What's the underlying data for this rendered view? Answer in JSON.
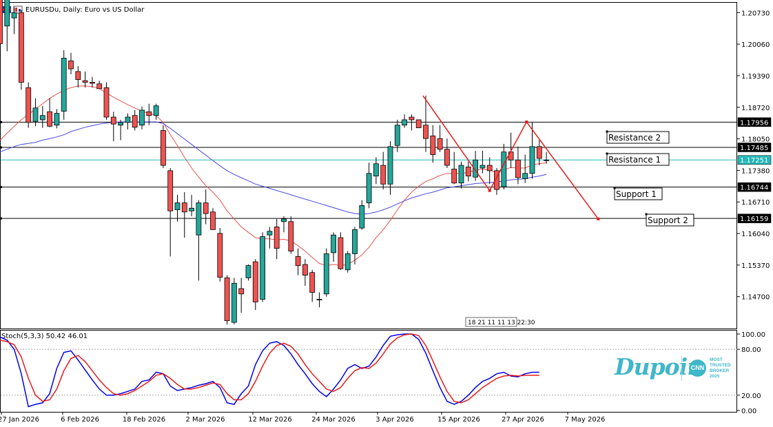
{
  "header": {
    "title": "EURUSDu, Daily:  Euro vs US Dollar"
  },
  "subchart": {
    "title": "Stoch(5,3,3) 50.42 46.01"
  },
  "brand": {
    "name": "Dupoin",
    "badge": "CNN",
    "tagline": "MOST TRUSTED BROKER 2025"
  },
  "colors": {
    "bull": "#26a69a",
    "bear": "#ef5350",
    "ma_fast": "#e8514a",
    "ma_slow": "#4747e0",
    "bid_line": "#26b7b7",
    "trend": "#e61919",
    "stoch_main": "#0000e6",
    "stoch_signal": "#e61919"
  },
  "chart_data": [
    {
      "type": "candlestick",
      "title": "EURUSDu, Daily:  Euro vs US Dollar",
      "ylim": [
        1.1405,
        1.2085
      ],
      "y_ticks": [
        "1.20730",
        "1.20060",
        "1.19390",
        "1.18720",
        "1.18050",
        "1.17380",
        "1.16710",
        "1.16040",
        "1.15370",
        "1.14700"
      ],
      "x_labels": [
        "27 Jan 2026",
        "6 Feb 2026",
        "18 Feb 2026",
        "2 Mar 2026",
        "12 Mar 2026",
        "24 Mar 2026",
        "3 Apr 2026",
        "15 Apr 2026",
        "27 Apr 2026",
        "7 May 2026"
      ],
      "time_overlay_label": "18 21 11 11 13 22:30",
      "candles": [
        [
          1.2048,
          1.2054,
          1.1917,
          1.1942
        ],
        [
          1.1975,
          1.2045,
          1.1928,
          1.203
        ],
        [
          1.199,
          1.201,
          1.196,
          1.2
        ],
        [
          1.2,
          1.2005,
          1.1856,
          1.187
        ],
        [
          1.186,
          1.187,
          1.1785,
          1.1795
        ],
        [
          1.1797,
          1.184,
          1.1788,
          1.1822
        ],
        [
          1.18,
          1.1826,
          1.1785,
          1.1808
        ],
        [
          1.1815,
          1.184,
          1.1786,
          1.1788
        ],
        [
          1.179,
          1.182,
          1.1784,
          1.1812
        ],
        [
          1.1816,
          1.193,
          1.18,
          1.1915
        ],
        [
          1.191,
          1.1925,
          1.1885,
          1.1895
        ],
        [
          1.189,
          1.19,
          1.186,
          1.1875
        ],
        [
          1.1873,
          1.189,
          1.186,
          1.187
        ],
        [
          1.187,
          1.188,
          1.186,
          1.1868
        ],
        [
          1.1867,
          1.1873,
          1.1858,
          1.1858
        ],
        [
          1.186,
          1.187,
          1.18,
          1.1805
        ],
        [
          1.1805,
          1.1815,
          1.176,
          1.1792
        ],
        [
          1.179,
          1.18,
          1.1762,
          1.1795
        ],
        [
          1.1795,
          1.1812,
          1.1782,
          1.1805
        ],
        [
          1.1808,
          1.1818,
          1.178,
          1.1786
        ],
        [
          1.179,
          1.1825,
          1.1782,
          1.1818
        ],
        [
          1.1815,
          1.183,
          1.179,
          1.1808
        ],
        [
          1.1808,
          1.183,
          1.18,
          1.1826
        ],
        [
          1.178,
          1.179,
          1.171,
          1.1715
        ],
        [
          1.1705,
          1.171,
          1.1545,
          1.163
        ],
        [
          1.1632,
          1.166,
          1.161,
          1.1645
        ],
        [
          1.1645,
          1.1665,
          1.158,
          1.1628
        ],
        [
          1.163,
          1.166,
          1.162,
          1.1635
        ],
        [
          1.1585,
          1.165,
          1.15,
          1.1645
        ],
        [
          1.1645,
          1.167,
          1.1605,
          1.1625
        ],
        [
          1.1628,
          1.1635,
          1.1595,
          1.1595
        ],
        [
          1.1588,
          1.1598,
          1.1498,
          1.1506
        ],
        [
          1.1505,
          1.151,
          1.1418,
          1.1425
        ],
        [
          1.1422,
          1.1505,
          1.1418,
          1.1495
        ],
        [
          1.1485,
          1.1505,
          1.144,
          1.1475
        ],
        [
          1.1505,
          1.153,
          1.15,
          1.1528
        ],
        [
          1.1535,
          1.154,
          1.1445,
          1.146
        ],
        [
          1.1465,
          1.159,
          1.146,
          1.1582
        ],
        [
          1.1585,
          1.16,
          1.156,
          1.1592
        ],
        [
          1.16,
          1.1615,
          1.154,
          1.156
        ],
        [
          1.161,
          1.162,
          1.159,
          1.1615
        ],
        [
          1.161,
          1.162,
          1.155,
          1.1555
        ],
        [
          1.1545,
          1.156,
          1.151,
          1.1528
        ],
        [
          1.153,
          1.154,
          1.149,
          1.151
        ],
        [
          1.1515,
          1.152,
          1.146,
          1.1478
        ],
        [
          1.1465,
          1.1478,
          1.145,
          1.1465
        ],
        [
          1.1475,
          1.156,
          1.147,
          1.155
        ],
        [
          1.1552,
          1.159,
          1.1535,
          1.1585
        ],
        [
          1.158,
          1.159,
          1.152,
          1.1522
        ],
        [
          1.152,
          1.1555,
          1.1515,
          1.155
        ],
        [
          1.155,
          1.16,
          1.153,
          1.1595
        ],
        [
          1.1598,
          1.165,
          1.1595,
          1.164
        ],
        [
          1.1645,
          1.172,
          1.1635,
          1.17
        ],
        [
          1.1695,
          1.173,
          1.168,
          1.1718
        ],
        [
          1.1715,
          1.174,
          1.167,
          1.168
        ],
        [
          1.168,
          1.176,
          1.166,
          1.175
        ],
        [
          1.1752,
          1.18,
          1.174,
          1.179
        ],
        [
          1.179,
          1.181,
          1.1785,
          1.18
        ],
        [
          1.1805,
          1.181,
          1.178,
          1.18
        ],
        [
          1.18,
          1.18,
          1.1785,
          1.1785
        ],
        [
          1.179,
          1.1845,
          1.174,
          1.1765
        ],
        [
          1.177,
          1.179,
          1.172,
          1.1735
        ],
        [
          1.1765,
          1.179,
          1.174,
          1.1745
        ],
        [
          1.1745,
          1.1765,
          1.171,
          1.1715
        ],
        [
          1.1708,
          1.174,
          1.168,
          1.1682
        ],
        [
          1.1682,
          1.1722,
          1.1672,
          1.1715
        ],
        [
          1.1712,
          1.1722,
          1.1685,
          1.1695
        ],
        [
          1.1693,
          1.1742,
          1.1686,
          1.1725
        ],
        [
          1.171,
          1.1742,
          1.17,
          1.1715
        ],
        [
          1.1715,
          1.173,
          1.168,
          1.1705
        ],
        [
          1.1705,
          1.171,
          1.166,
          1.167
        ],
        [
          1.1675,
          1.1755,
          1.167,
          1.174
        ],
        [
          1.174,
          1.1776,
          1.171,
          1.1725
        ],
        [
          1.1725,
          1.175,
          1.168,
          1.1692
        ],
        [
          1.169,
          1.1735,
          1.1682,
          1.17
        ],
        [
          1.17,
          1.1795,
          1.169,
          1.175
        ],
        [
          1.175,
          1.1762,
          1.1715,
          1.1728
        ],
        [
          1.1725,
          1.174,
          1.1718,
          1.1725
        ]
      ],
      "series": [
        {
          "values": [
            1.1762,
            1.1775,
            1.1788,
            1.18,
            1.181,
            1.182,
            1.183,
            1.184,
            1.1848,
            1.1855,
            1.186,
            1.1863,
            1.1863,
            1.1862,
            1.1858,
            1.185,
            1.1842,
            1.1835,
            1.1828,
            1.1822,
            1.1816,
            1.1812,
            1.1808,
            1.1795,
            1.1772,
            1.1752,
            1.173,
            1.171,
            1.1693,
            1.1677,
            1.1665,
            1.165,
            1.163,
            1.1615,
            1.16,
            1.159,
            1.158,
            1.1578,
            1.1578,
            1.1576,
            1.1577,
            1.1574,
            1.1565,
            1.1555,
            1.1543,
            1.1532,
            1.1528,
            1.153,
            1.1528,
            1.153,
            1.1538,
            1.1548,
            1.1562,
            1.158,
            1.1595,
            1.1612,
            1.1632,
            1.165,
            1.1665,
            1.1676,
            1.1685,
            1.169,
            1.1696,
            1.17,
            1.17,
            1.17,
            1.1702,
            1.1706,
            1.1708,
            1.1706,
            1.1702,
            1.1707,
            1.1711,
            1.171,
            1.171,
            1.1716,
            1.1718,
            1.172
          ]
        },
        {
          "values": [
            1.174,
            1.1745,
            1.175,
            1.1754,
            1.1756,
            1.1758,
            1.1762,
            1.1765,
            1.1768,
            1.1772,
            1.1778,
            1.1782,
            1.1786,
            1.1789,
            1.1792,
            1.1794,
            1.1795,
            1.1796,
            1.1796,
            1.1796,
            1.1796,
            1.1796,
            1.1796,
            1.1793,
            1.1784,
            1.1774,
            1.1764,
            1.1754,
            1.1744,
            1.1734,
            1.1724,
            1.1714,
            1.1705,
            1.1698,
            1.1692,
            1.1686,
            1.168,
            1.1676,
            1.1672,
            1.1668,
            1.1664,
            1.166,
            1.1656,
            1.1652,
            1.1648,
            1.1644,
            1.164,
            1.1636,
            1.1632,
            1.1628,
            1.1625,
            1.1624,
            1.1625,
            1.1628,
            1.1632,
            1.1637,
            1.1643,
            1.1649,
            1.1654,
            1.1658,
            1.1662,
            1.1665,
            1.1669,
            1.1673,
            1.1675,
            1.1677,
            1.1679,
            1.1681,
            1.1682,
            1.1683,
            1.1684,
            1.1686,
            1.1688,
            1.1689,
            1.169,
            1.1693,
            1.1695,
            1.1698
          ]
        }
      ],
      "horizontal_lines": [
        {
          "label": "Resistance 2",
          "price": "1.17956",
          "value": 1.17956,
          "color": "#000000"
        },
        {
          "label": "Resistance 1",
          "price": "1.17485",
          "value": 1.17485,
          "color": "#000000"
        },
        {
          "label": "",
          "price": "1.17251",
          "value": 1.17251,
          "color": "#26b7b7"
        },
        {
          "label": "Support 1",
          "price": "1.16744",
          "value": 1.16744,
          "color": "#000000"
        },
        {
          "label": "Support 2",
          "price": "1.16159",
          "value": 1.16159,
          "color": "#000000"
        }
      ],
      "trend_lines": [
        {
          "points": [
            [
              59.6,
              1.1845
            ],
            [
              69.0,
              1.1668
            ],
            [
              74.2,
              1.1796
            ],
            [
              84.3,
              1.1615
            ]
          ]
        }
      ]
    },
    {
      "type": "line",
      "title": "Stoch(5,3,3) 50.42 46.01",
      "ylim": [
        0,
        100
      ],
      "y_ticks": [
        "100.00",
        "80.00",
        "20.00",
        "0.00"
      ],
      "levels": [
        20,
        80
      ],
      "series": [
        {
          "values": [
            96,
            92,
            80,
            48,
            5,
            8,
            10,
            22,
            55,
            76,
            78,
            66,
            53,
            40,
            28,
            20,
            20,
            22,
            25,
            28,
            38,
            40,
            50,
            48,
            32,
            26,
            28,
            30,
            33,
            35,
            38,
            30,
            10,
            8,
            22,
            32,
            60,
            78,
            88,
            90,
            85,
            74,
            60,
            48,
            35,
            25,
            18,
            28,
            40,
            55,
            60,
            55,
            58,
            70,
            85,
            97,
            99,
            100,
            100,
            93,
            75,
            52,
            30,
            12,
            8,
            12,
            20,
            30,
            38,
            42,
            48,
            50,
            45,
            44,
            48,
            50,
            50
          ]
        },
        {
          "values": [
            92,
            90,
            86,
            70,
            42,
            20,
            12,
            14,
            28,
            52,
            68,
            72,
            64,
            52,
            40,
            30,
            22,
            20,
            22,
            26,
            32,
            38,
            46,
            48,
            42,
            34,
            28,
            28,
            30,
            33,
            36,
            34,
            22,
            14,
            14,
            22,
            38,
            58,
            75,
            85,
            88,
            84,
            74,
            60,
            48,
            38,
            28,
            25,
            30,
            42,
            52,
            56,
            55,
            62,
            74,
            87,
            95,
            99,
            100,
            98,
            85,
            65,
            44,
            25,
            12,
            10,
            14,
            22,
            30,
            36,
            42,
            45,
            46,
            45,
            46,
            46,
            46
          ]
        }
      ]
    }
  ]
}
